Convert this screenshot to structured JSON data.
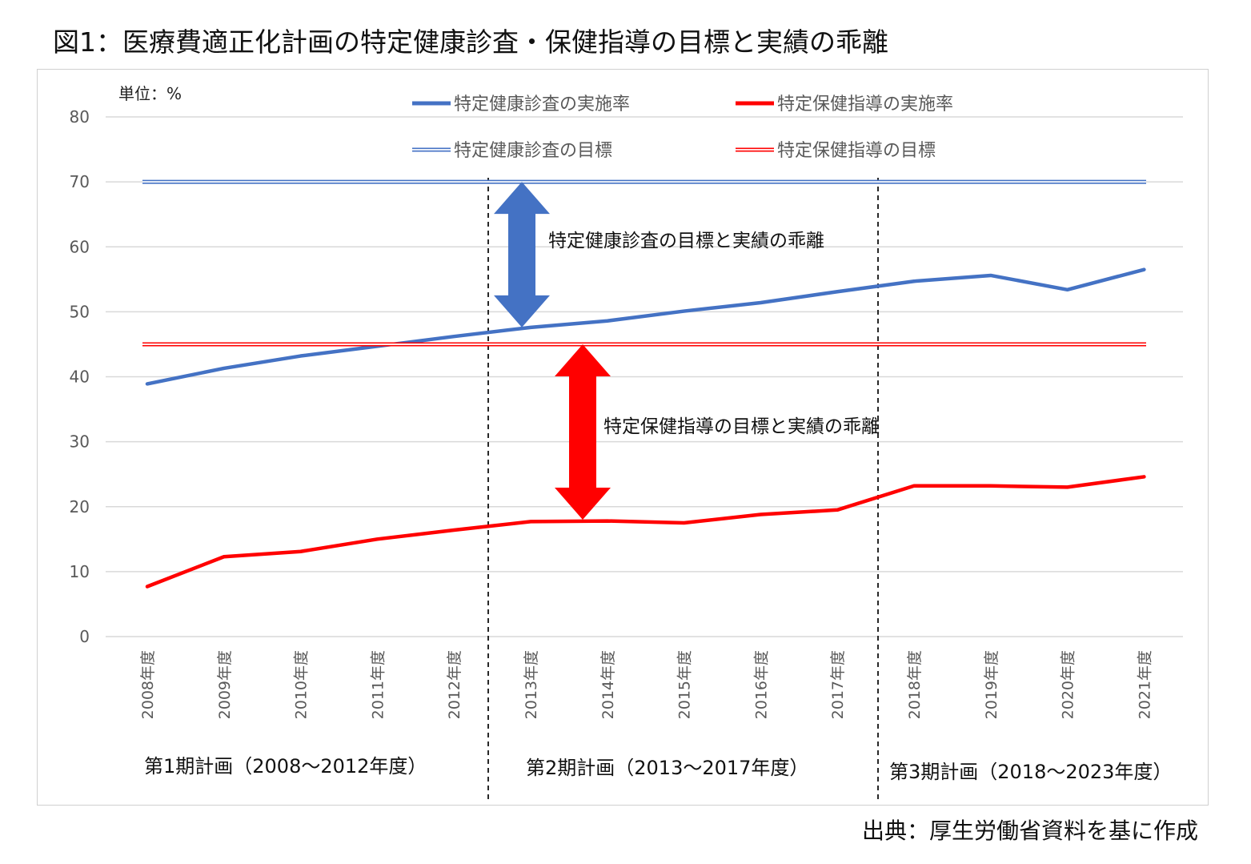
{
  "figure_title": "図1：医療費適正化計画の特定健康診査・保健指導の目標と実績の乖離",
  "source_note": "出典：厚生労働省資料を基に作成",
  "chart_data": {
    "type": "line",
    "unit_label": "単位：%",
    "categories": [
      "2008年度",
      "2009年度",
      "2010年度",
      "2011年度",
      "2012年度",
      "2013年度",
      "2014年度",
      "2015年度",
      "2016年度",
      "2017年度",
      "2018年度",
      "2019年度",
      "2020年度",
      "2021年度"
    ],
    "ylim": [
      0,
      80
    ],
    "yticks": [
      0,
      10,
      20,
      30,
      40,
      50,
      60,
      70,
      80
    ],
    "grid": true,
    "legend_position": "top",
    "series": [
      {
        "name": "特定健康診査の実施率",
        "color": "#4472C4",
        "style": "solid",
        "values": [
          38.9,
          41.3,
          43.2,
          44.7,
          46.2,
          47.6,
          48.6,
          50.1,
          51.4,
          53.1,
          54.7,
          55.6,
          53.4,
          56.5
        ]
      },
      {
        "name": "特定保健指導の実施率",
        "color": "#FF0000",
        "style": "solid",
        "values": [
          7.7,
          12.3,
          13.1,
          15.0,
          16.4,
          17.7,
          17.8,
          17.5,
          18.8,
          19.5,
          23.2,
          23.2,
          23.0,
          24.6
        ]
      },
      {
        "name": "特定健康診査の目標",
        "color": "#4472C4",
        "style": "double",
        "values": [
          70,
          70,
          70,
          70,
          70,
          70,
          70,
          70,
          70,
          70,
          70,
          70,
          70,
          70
        ]
      },
      {
        "name": "特定保健指導の目標",
        "color": "#FF0000",
        "style": "double",
        "values": [
          45,
          45,
          45,
          45,
          45,
          45,
          45,
          45,
          45,
          45,
          45,
          45,
          45,
          45
        ]
      }
    ],
    "periods": [
      {
        "label": "第1期計画（2008～2012年度）"
      },
      {
        "label": "第2期計画（2013～2017年度）"
      },
      {
        "label": "第3期計画（2018～2023年度）"
      }
    ],
    "annotations": [
      {
        "label": "特定健康診査の目標と実績の乖離",
        "color": "#4472C4",
        "from": 70,
        "to": 47.6
      },
      {
        "label": "特定保健指導の目標と実績の乖離",
        "color": "#FF0000",
        "from": 45,
        "to": 18
      }
    ]
  }
}
